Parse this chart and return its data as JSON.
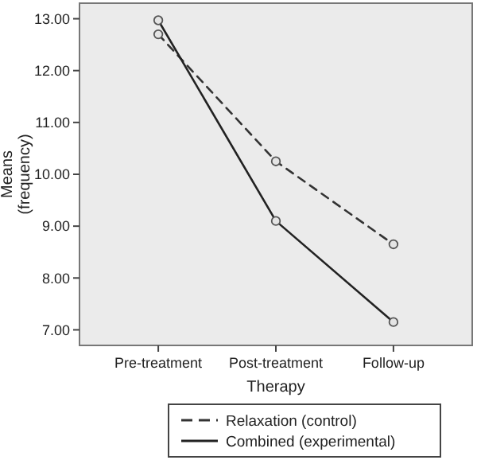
{
  "chart_data": {
    "type": "line",
    "xlabel": "Therapy",
    "ylabel": "Means\n(frequency)",
    "categories": [
      "Pre-treatment",
      "Post-treatment",
      "Follow-up"
    ],
    "ylim": [
      6.7,
      13.3
    ],
    "yticks": [
      {
        "value": 7,
        "label": "7.00"
      },
      {
        "value": 8,
        "label": "8.00"
      },
      {
        "value": 9,
        "label": "9.00"
      },
      {
        "value": 10,
        "label": "10.00"
      },
      {
        "value": 11,
        "label": "11.00"
      },
      {
        "value": 12,
        "label": "12.00"
      },
      {
        "value": 13,
        "label": "13.00"
      }
    ],
    "grid": false,
    "legend": "bottom",
    "marker": "circle",
    "series": [
      {
        "name": "Relaxation (control)",
        "color": "#333333",
        "line_style": "dashed",
        "values": [
          12.7,
          10.25,
          8.65
        ]
      },
      {
        "name": "Combined (experimental)",
        "color": "#222222",
        "line_style": "solid",
        "values": [
          12.97,
          9.1,
          7.15
        ]
      }
    ]
  }
}
